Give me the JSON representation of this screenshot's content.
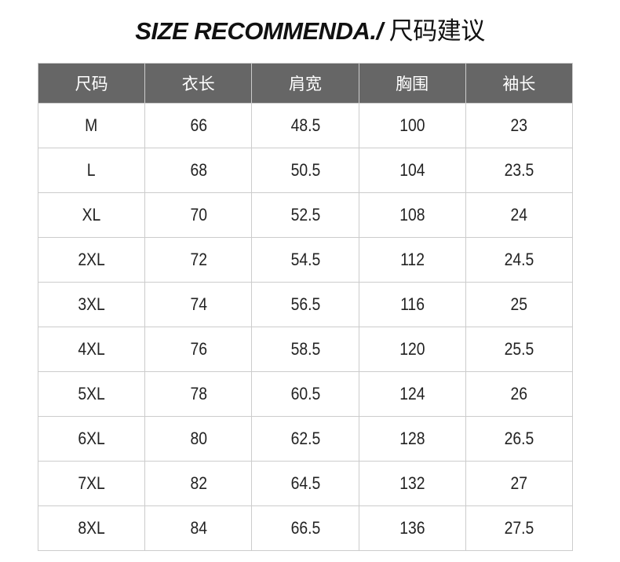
{
  "title": {
    "en": "SIZE RECOMMENDA./",
    "cn": " 尺码建议"
  },
  "table": {
    "headers": [
      "尺码",
      "衣长",
      "肩宽",
      "胸围",
      "袖长"
    ],
    "rows": [
      [
        "M",
        "66",
        "48.5",
        "100",
        "23"
      ],
      [
        "L",
        "68",
        "50.5",
        "104",
        "23.5"
      ],
      [
        "XL",
        "70",
        "52.5",
        "108",
        "24"
      ],
      [
        "2XL",
        "72",
        "54.5",
        "112",
        "24.5"
      ],
      [
        "3XL",
        "74",
        "56.5",
        "116",
        "25"
      ],
      [
        "4XL",
        "76",
        "58.5",
        "120",
        "25.5"
      ],
      [
        "5XL",
        "78",
        "60.5",
        "124",
        "26"
      ],
      [
        "6XL",
        "80",
        "62.5",
        "128",
        "26.5"
      ],
      [
        "7XL",
        "82",
        "64.5",
        "132",
        "27"
      ],
      [
        "8XL",
        "84",
        "66.5",
        "136",
        "27.5"
      ]
    ]
  },
  "colors": {
    "header_bg": "#666666",
    "header_text": "#ffffff",
    "border": "#cccccc"
  }
}
